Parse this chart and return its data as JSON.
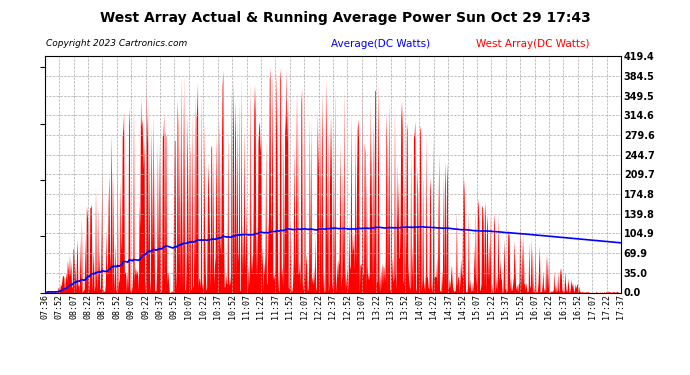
{
  "title": "West Array Actual & Running Average Power Sun Oct 29 17:43",
  "copyright": "Copyright 2023 Cartronics.com",
  "legend_avg": "Average(DC Watts)",
  "legend_west": "West Array(DC Watts)",
  "bg_color": "#ffffff",
  "plot_bg_color": "#ffffff",
  "fill_color": "#ff0000",
  "avg_line_color": "#0000ff",
  "yticks": [
    0.0,
    35.0,
    69.9,
    104.9,
    139.8,
    174.8,
    209.7,
    244.7,
    279.6,
    314.6,
    349.5,
    384.5,
    419.4
  ],
  "ymax": 419.4,
  "grid_color": "#bbbbbb",
  "xtick_labels": [
    "07:36",
    "07:52",
    "08:07",
    "08:22",
    "08:37",
    "08:52",
    "09:07",
    "09:22",
    "09:37",
    "09:52",
    "10:07",
    "10:22",
    "10:37",
    "10:52",
    "11:07",
    "11:22",
    "11:37",
    "11:52",
    "12:07",
    "12:22",
    "12:37",
    "12:52",
    "13:07",
    "13:22",
    "13:37",
    "13:52",
    "14:07",
    "14:22",
    "14:37",
    "14:52",
    "15:07",
    "15:22",
    "15:37",
    "15:52",
    "16:07",
    "16:22",
    "16:37",
    "16:52",
    "17:07",
    "17:22",
    "17:37"
  ]
}
